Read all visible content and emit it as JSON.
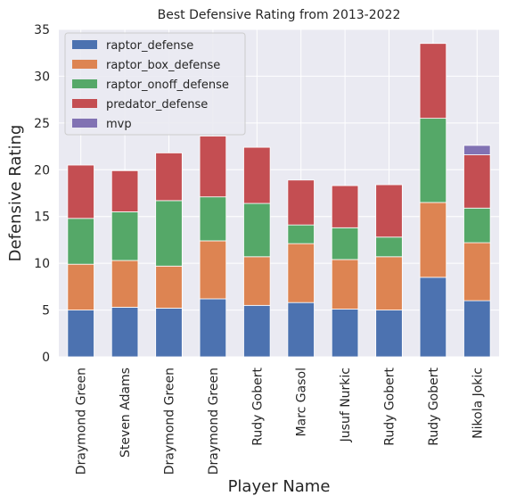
{
  "chart_data": {
    "type": "bar",
    "stacked": true,
    "title": "Best Defensive Rating from 2013-2022",
    "xlabel": "Player Name",
    "ylabel": "Defensive Rating",
    "ylim": [
      0,
      35
    ],
    "yticks": [
      0,
      5,
      10,
      15,
      20,
      25,
      30,
      35
    ],
    "grid": true,
    "legend_position": "top-left",
    "categories": [
      "Draymond Green",
      "Steven Adams",
      "Draymond Green",
      "Draymond Green",
      "Rudy Gobert",
      "Marc Gasol",
      "Jusuf Nurkic",
      "Rudy Gobert",
      "Rudy Gobert",
      "Nikola Jokic"
    ],
    "series": [
      {
        "name": "raptor_defense",
        "color": "#4c72b0",
        "values": [
          5.0,
          5.3,
          5.2,
          6.2,
          5.5,
          5.8,
          5.1,
          5.0,
          8.5,
          6.0
        ]
      },
      {
        "name": "raptor_box_defense",
        "color": "#dd8452",
        "values": [
          4.9,
          5.0,
          4.5,
          6.2,
          5.2,
          6.3,
          5.3,
          5.7,
          8.0,
          6.2
        ]
      },
      {
        "name": "raptor_onoff_defense",
        "color": "#55a868",
        "values": [
          4.9,
          5.2,
          7.0,
          4.7,
          5.7,
          2.0,
          3.4,
          2.1,
          9.0,
          3.7
        ]
      },
      {
        "name": "predator_defense",
        "color": "#c44e52",
        "values": [
          5.7,
          4.4,
          5.1,
          6.5,
          6.0,
          4.8,
          4.5,
          5.6,
          8.0,
          5.7
        ]
      },
      {
        "name": "mvp",
        "color": "#8172b3",
        "values": [
          0,
          0,
          0,
          0,
          0,
          0,
          0,
          0,
          0,
          1.0
        ]
      }
    ],
    "colors": {
      "plot_background": "#eaeaf2",
      "grid": "#ffffff",
      "text": "#262626"
    }
  }
}
